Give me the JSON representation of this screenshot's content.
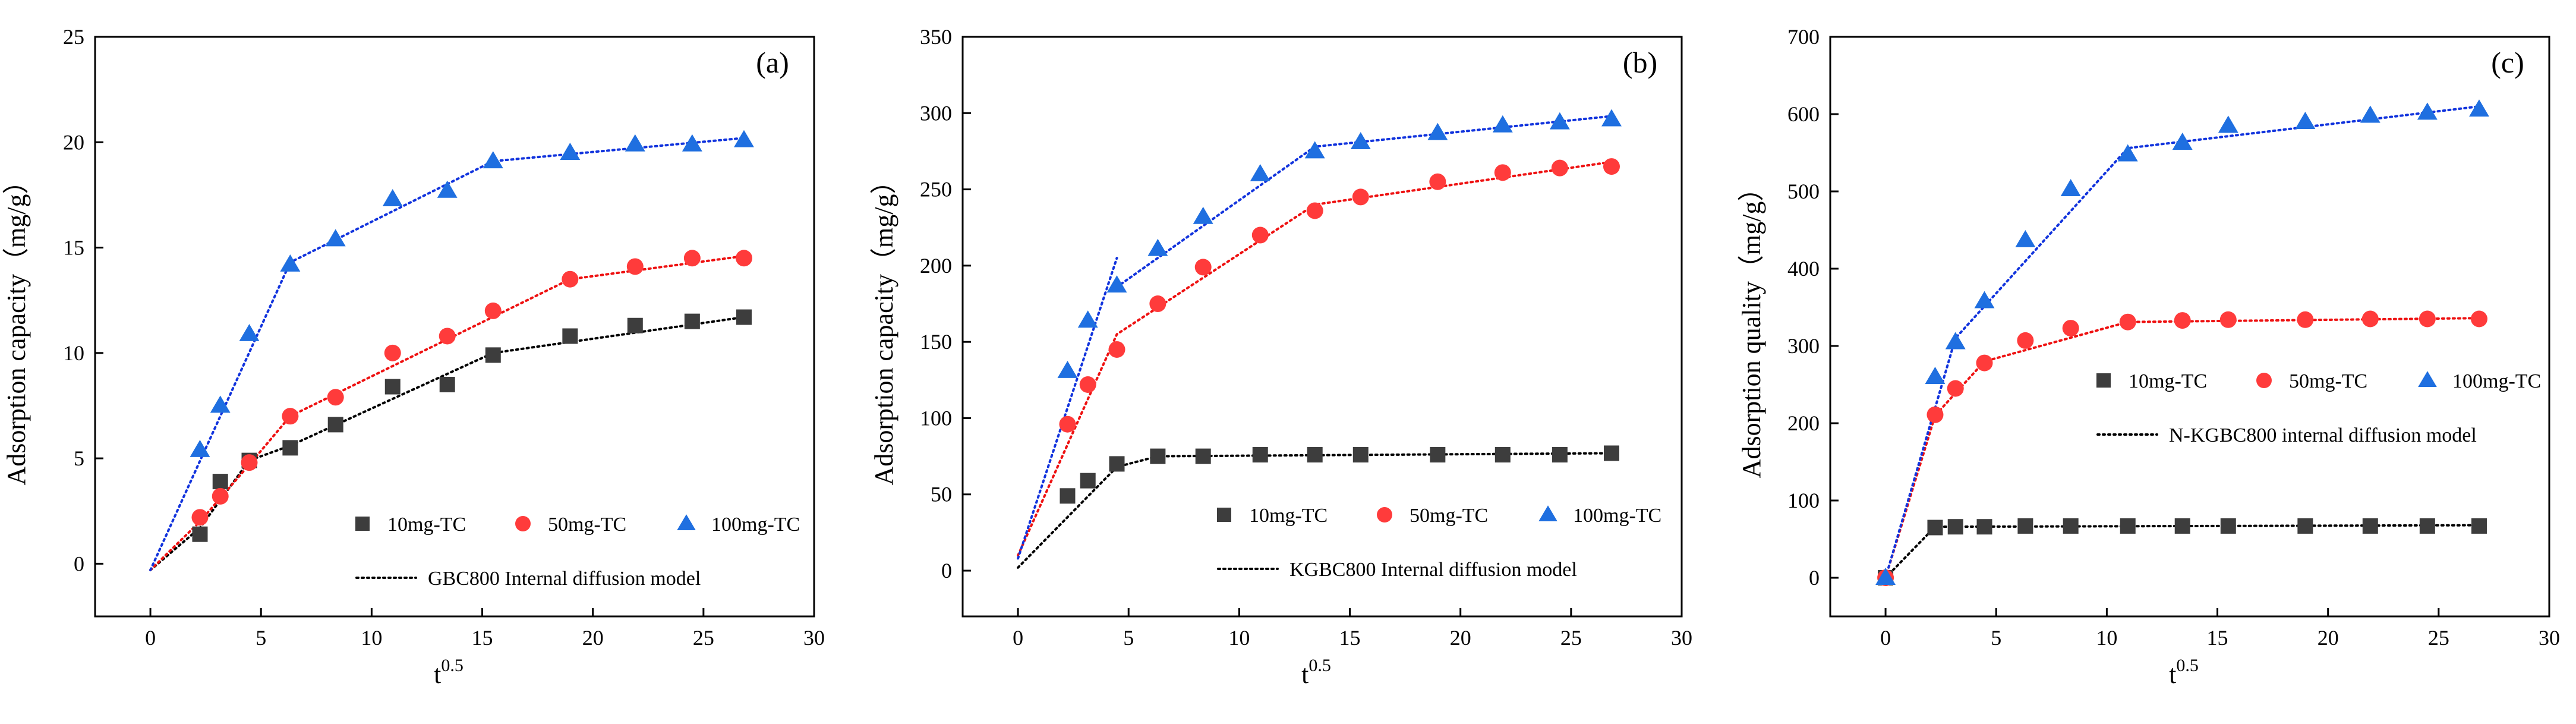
{
  "colors": {
    "series_10": "#3d3d3d",
    "series_50": "#ff3b3b",
    "series_100": "#1f6fe0",
    "fit_black": "#000000",
    "fit_red": "#ee1111",
    "fit_blue": "#1133dd"
  },
  "chart_data": [
    {
      "type": "scatter",
      "panel_label": "(a)",
      "xlabel": "t",
      "xlabel_sup": "0.5",
      "ylabel": "Adsorption capacity（mg/g）",
      "xlim": [
        -2.5,
        30
      ],
      "ylim": [
        -2.5,
        25
      ],
      "xticks": [
        0,
        5,
        10,
        15,
        20,
        25,
        30
      ],
      "xtick_labels": [
        "0",
        "5",
        "10",
        "15",
        "20",
        "25",
        "30"
      ],
      "yticks": [
        0,
        5,
        10,
        15,
        20,
        25
      ],
      "ytick_labels": [
        "0",
        "5",
        "10",
        "15",
        "20",
        "25"
      ],
      "x": [
        2.24,
        3.16,
        4.47,
        6.32,
        8.37,
        10.95,
        13.42,
        15.49,
        18.97,
        21.91,
        24.49,
        26.83
      ],
      "series": [
        {
          "name": "10mg-TC",
          "marker": "square",
          "color": "#3d3d3d",
          "values": [
            1.4,
            3.9,
            4.9,
            5.5,
            6.6,
            8.4,
            8.5,
            9.9,
            10.8,
            11.3,
            11.5,
            11.7
          ]
        },
        {
          "name": "50mg-TC",
          "marker": "circle",
          "color": "#ff3b3b",
          "values": [
            2.2,
            3.2,
            4.8,
            7.0,
            7.9,
            10.0,
            10.8,
            12.0,
            13.5,
            14.1,
            14.5,
            14.5
          ]
        },
        {
          "name": "100mg-TC",
          "marker": "triangle",
          "color": "#1f6fe0",
          "values": [
            5.4,
            7.5,
            10.9,
            14.2,
            15.4,
            17.3,
            17.7,
            19.1,
            19.5,
            19.9,
            19.9,
            20.1
          ]
        }
      ],
      "fit_lines": [
        {
          "color": "#000000",
          "points": [
            [
              0,
              -0.3
            ],
            [
              2.24,
              1.7
            ],
            [
              4.47,
              4.9
            ],
            [
              6.32,
              5.6
            ],
            [
              15.49,
              10.0
            ],
            [
              26.83,
              11.7
            ]
          ]
        },
        {
          "color": "#ee1111",
          "points": [
            [
              0,
              -0.3
            ],
            [
              2.24,
              2.0
            ],
            [
              4.47,
              4.7
            ],
            [
              6.32,
              7.0
            ],
            [
              18.97,
              13.5
            ],
            [
              26.83,
              14.6
            ]
          ]
        },
        {
          "color": "#1133dd",
          "points": [
            [
              0,
              -0.3
            ],
            [
              6.32,
              14.3
            ],
            [
              15.49,
              19.1
            ],
            [
              26.83,
              20.2
            ]
          ]
        }
      ],
      "legend": {
        "entries": [
          {
            "label": "10mg-TC",
            "marker": "square",
            "color": "#3d3d3d"
          },
          {
            "label": "50mg-TC",
            "marker": "circle",
            "color": "#ff3b3b"
          },
          {
            "label": "100mg-TC",
            "marker": "triangle",
            "color": "#1f6fe0"
          }
        ],
        "model_label": "GBC800 Internal diffusion model"
      }
    },
    {
      "type": "scatter",
      "panel_label": "(b)",
      "xlabel": "t",
      "xlabel_sup": "0.5",
      "ylabel": "Adsorption capacity（mg/g）",
      "xlim": [
        -2.5,
        30
      ],
      "ylim": [
        -30,
        350
      ],
      "xticks": [
        0,
        5,
        10,
        15,
        20,
        25,
        30
      ],
      "xtick_labels": [
        "0",
        "5",
        "10",
        "15",
        "20",
        "25",
        "30"
      ],
      "yticks": [
        0,
        50,
        100,
        150,
        200,
        250,
        300,
        350
      ],
      "ytick_labels": [
        "0",
        "50",
        "100",
        "150",
        "200",
        "250",
        "300",
        "350"
      ],
      "x": [
        2.24,
        3.16,
        4.47,
        6.32,
        8.37,
        10.95,
        13.42,
        15.49,
        18.97,
        21.91,
        24.49,
        26.83
      ],
      "series": [
        {
          "name": "10mg-TC",
          "marker": "square",
          "color": "#3d3d3d",
          "values": [
            49,
            59,
            70,
            75,
            75,
            76,
            76,
            76,
            76,
            76,
            76,
            77
          ]
        },
        {
          "name": "50mg-TC",
          "marker": "circle",
          "color": "#ff3b3b",
          "values": [
            96,
            122,
            145,
            175,
            199,
            220,
            236,
            245,
            255,
            261,
            264,
            265
          ]
        },
        {
          "name": "100mg-TC",
          "marker": "triangle",
          "color": "#1f6fe0",
          "values": [
            131,
            164,
            187,
            211,
            232,
            260,
            275,
            281,
            287,
            292,
            294,
            296
          ]
        }
      ],
      "fit_lines": [
        {
          "color": "#000000",
          "points": [
            [
              0,
              2
            ],
            [
              4.47,
              68
            ],
            [
              6.32,
              75
            ],
            [
              26.83,
              77
            ]
          ]
        },
        {
          "color": "#ee1111",
          "points": [
            [
              0,
              10
            ],
            [
              4.47,
              155
            ],
            [
              13.42,
              240
            ],
            [
              26.83,
              268
            ]
          ]
        },
        {
          "color": "#1133dd",
          "points": [
            [
              0,
              8
            ],
            [
              4.47,
              205
            ]
          ]
        },
        {
          "color": "#1133dd",
          "points": [
            [
              4.47,
              186
            ],
            [
              13.42,
              278
            ],
            [
              26.83,
              298
            ]
          ]
        }
      ],
      "legend": {
        "entries": [
          {
            "label": "10mg-TC",
            "marker": "square",
            "color": "#3d3d3d"
          },
          {
            "label": "50mg-TC",
            "marker": "circle",
            "color": "#ff3b3b"
          },
          {
            "label": "100mg-TC",
            "marker": "triangle",
            "color": "#1f6fe0"
          }
        ],
        "model_label": "KGBC800 Internal diffusion model"
      }
    },
    {
      "type": "scatter",
      "panel_label": "(c)",
      "xlabel": "t",
      "xlabel_sup": "0.5",
      "ylabel": "Adsorption quality（mg/g）",
      "xlim": [
        -2.5,
        30
      ],
      "ylim": [
        -50,
        700
      ],
      "xticks": [
        0,
        5,
        10,
        15,
        20,
        25,
        30
      ],
      "xtick_labels": [
        "0",
        "5",
        "10",
        "15",
        "20",
        "25",
        "30"
      ],
      "yticks": [
        0,
        100,
        200,
        300,
        400,
        500,
        600,
        700
      ],
      "ytick_labels": [
        "0",
        "100",
        "200",
        "300",
        "400",
        "500",
        "600",
        "700"
      ],
      "x": [
        0,
        2.24,
        3.16,
        4.47,
        6.32,
        8.37,
        10.95,
        13.42,
        15.49,
        18.97,
        21.91,
        24.49,
        26.83
      ],
      "series": [
        {
          "name": "10mg-TC",
          "marker": "square",
          "color": "#3d3d3d",
          "values": [
            0,
            65,
            66,
            66,
            67,
            67,
            67,
            67,
            67,
            67,
            67,
            67,
            67
          ]
        },
        {
          "name": "50mg-TC",
          "marker": "circle",
          "color": "#ff3b3b",
          "values": [
            0,
            211,
            245,
            278,
            307,
            323,
            331,
            333,
            334,
            334,
            335,
            335,
            335
          ]
        },
        {
          "name": "100mg-TC",
          "marker": "triangle",
          "color": "#1f6fe0",
          "values": [
            0,
            260,
            305,
            358,
            437,
            503,
            548,
            563,
            585,
            590,
            598,
            602,
            606
          ]
        }
      ],
      "fit_lines": [
        {
          "color": "#000000",
          "points": [
            [
              0,
              0
            ],
            [
              2.24,
              66
            ],
            [
              26.83,
              68
            ]
          ]
        },
        {
          "color": "#ee1111",
          "points": [
            [
              0,
              0
            ],
            [
              2.24,
              210
            ],
            [
              4.47,
              280
            ],
            [
              10.95,
              331
            ],
            [
              26.83,
              336
            ]
          ]
        },
        {
          "color": "#1133dd",
          "points": [
            [
              0,
              0
            ],
            [
              3.16,
              310
            ],
            [
              10.95,
              556
            ],
            [
              26.83,
              610
            ]
          ]
        }
      ],
      "legend": {
        "entries": [
          {
            "label": "10mg-TC",
            "marker": "square",
            "color": "#3d3d3d"
          },
          {
            "label": "50mg-TC",
            "marker": "circle",
            "color": "#ff3b3b"
          },
          {
            "label": "100mg-TC",
            "marker": "triangle",
            "color": "#1f6fe0"
          }
        ],
        "model_label": "N-KGBC800 internal diffusion model"
      }
    }
  ]
}
